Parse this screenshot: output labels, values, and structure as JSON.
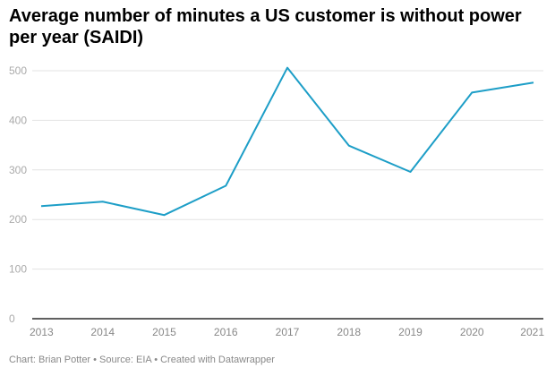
{
  "chart_data": {
    "type": "line",
    "title": "Average number of minutes a US customer is without power per year (SAIDI)",
    "categories": [
      "2013",
      "2014",
      "2015",
      "2016",
      "2017",
      "2018",
      "2019",
      "2020",
      "2021"
    ],
    "series": [
      {
        "values": [
          227,
          236,
          209,
          268,
          506,
          349,
          296,
          456,
          476
        ]
      }
    ],
    "ylim": [
      0,
      500
    ],
    "yticks": [
      0,
      100,
      200,
      300,
      400,
      500
    ],
    "grid": true,
    "line_color": "#1d9ec7"
  },
  "footer": "Chart: Brian Potter • Source: EIA • Created with Datawrapper"
}
